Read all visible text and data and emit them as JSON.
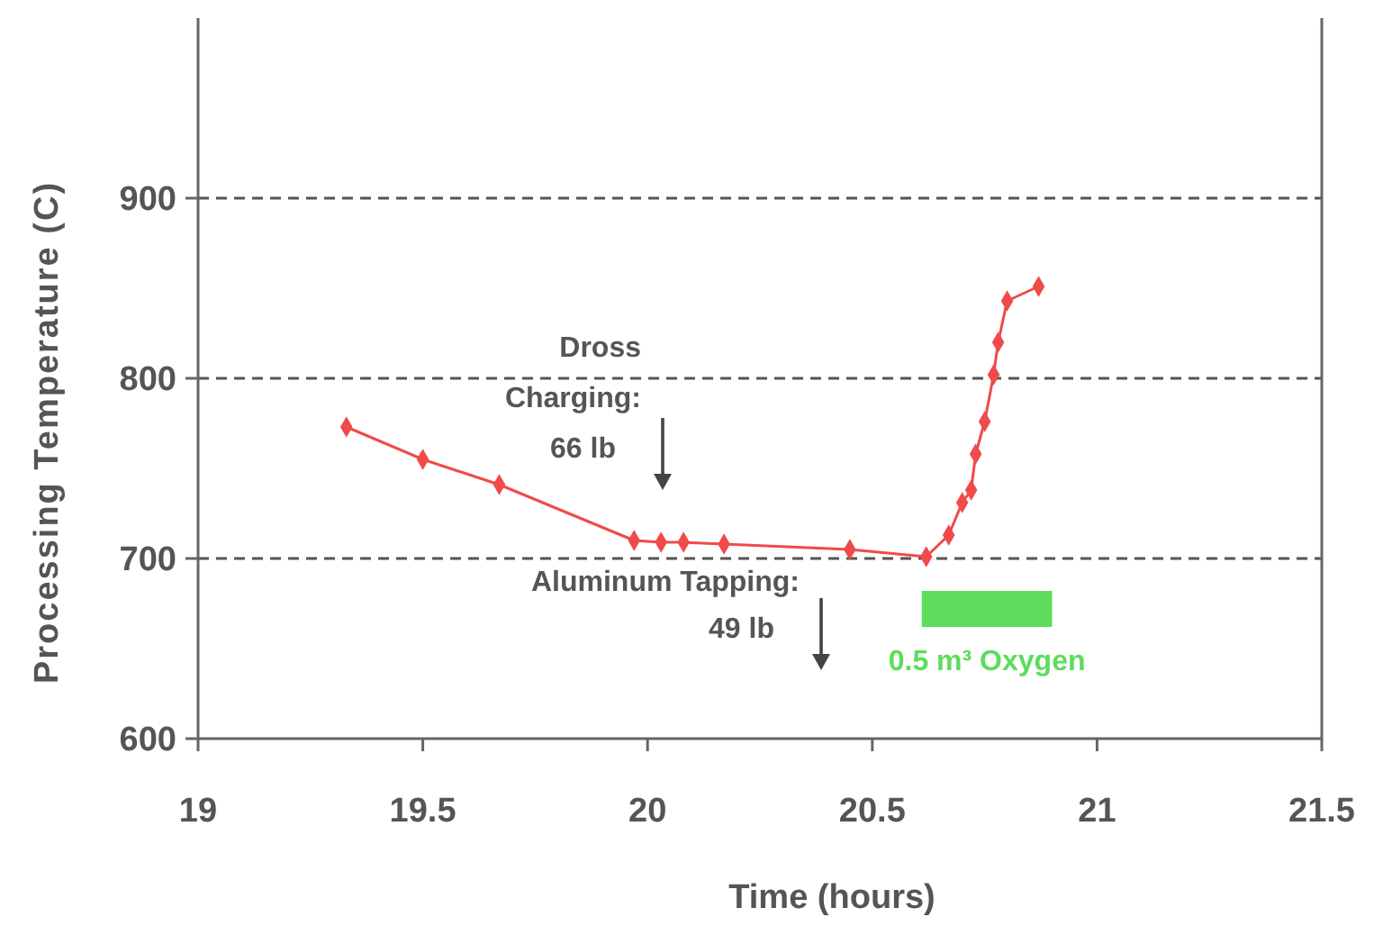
{
  "chart_data": {
    "type": "line",
    "xlabel": "Time (hours)",
    "ylabel": "Processing Temperature (C)",
    "x": [
      19.33,
      19.5,
      19.67,
      19.97,
      20.03,
      20.08,
      20.17,
      20.45,
      20.62,
      20.67,
      20.7,
      20.72,
      20.73,
      20.75,
      20.77,
      20.78,
      20.8,
      20.87
    ],
    "series": [
      {
        "color": "#f04a4a",
        "values": [
          773,
          755,
          741,
          710,
          709,
          709,
          708,
          705,
          701,
          713,
          731,
          738,
          758,
          776,
          802,
          820,
          843,
          851
        ]
      }
    ],
    "xlim": [
      19,
      21.5
    ],
    "xticks": [
      19,
      19.5,
      20,
      20.5,
      21,
      21.5
    ],
    "ylim": [
      600,
      1000
    ],
    "yticks": [
      600,
      700,
      800,
      900
    ],
    "grid": "y",
    "marker": "diamond",
    "line_style": "solid",
    "bands": [
      {
        "axis": "x",
        "from": 20.61,
        "to": 20.9,
        "label": "0.5 m³ Oxygen",
        "color": "#5ddc5d"
      }
    ],
    "annotations": [
      "Dross\nCharging:\n66 lb",
      "Aluminum Tapping:\n49 lb"
    ]
  }
}
